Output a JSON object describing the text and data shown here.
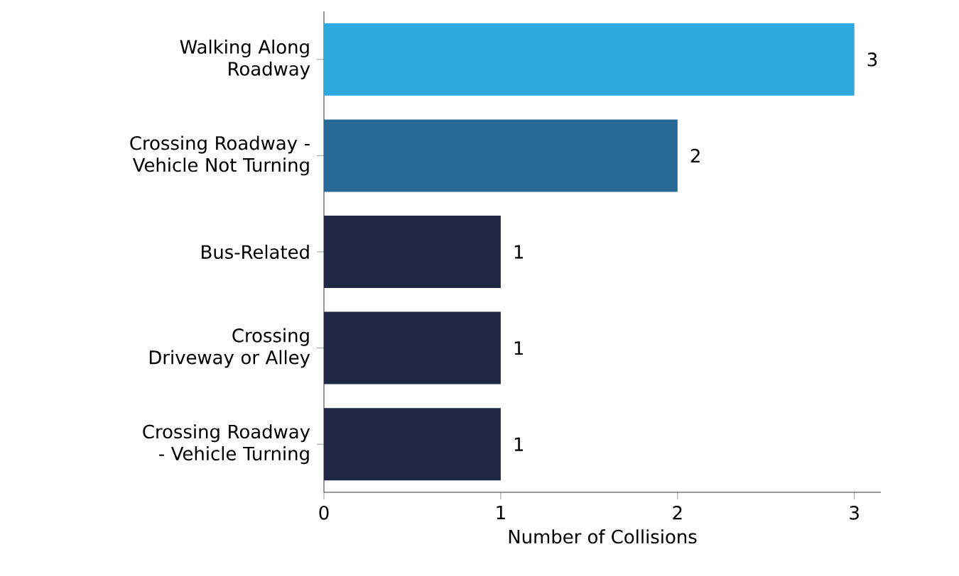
{
  "chart_data": {
    "type": "bar",
    "orientation": "horizontal",
    "xlabel": "Number of Collisions",
    "categories": [
      "Walking Along Roadway",
      "Crossing Roadway - Vehicle Not Turning",
      "Bus-Related",
      "Crossing Driveway or Alley",
      "Crossing Roadway - Vehicle Turning"
    ],
    "values": [
      3,
      2,
      1,
      1,
      1
    ],
    "colors": [
      "#2eaae1",
      "#276994",
      "#1f2744",
      "#1f2744",
      "#1f2744"
    ],
    "xlim": [
      0,
      3.15
    ],
    "xticks": [
      0,
      1,
      2,
      3
    ],
    "data_labels": true,
    "grid": false
  }
}
